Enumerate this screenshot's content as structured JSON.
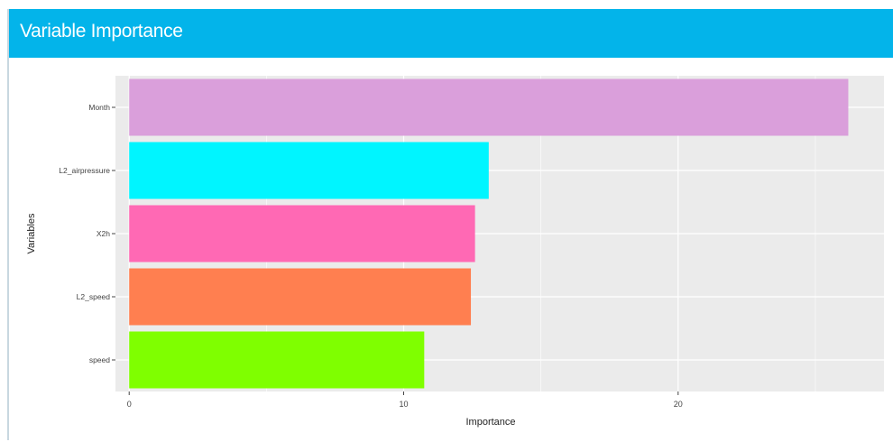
{
  "panel": {
    "title": "Variable Importance"
  },
  "chart_data": {
    "type": "bar",
    "orientation": "horizontal",
    "title": "",
    "xlabel": "Importance",
    "ylabel": "Variables",
    "categories": [
      "Month",
      "L2_airpressure",
      "X2h",
      "L2_speed",
      "speed"
    ],
    "values": [
      26.2,
      13.1,
      12.6,
      12.45,
      10.75
    ],
    "colors": [
      "#da9fdb",
      "#00f5ff",
      "#ff69b4",
      "#ff7f50",
      "#7fff00"
    ],
    "xlim": [
      -0.5,
      27.5
    ],
    "xticks": [
      0,
      10,
      20
    ],
    "xtick_labels": [
      "0",
      "10",
      "20"
    ],
    "grid": true,
    "legend": "none",
    "background": "#ebebeb",
    "header_color": "#03b4ea"
  }
}
